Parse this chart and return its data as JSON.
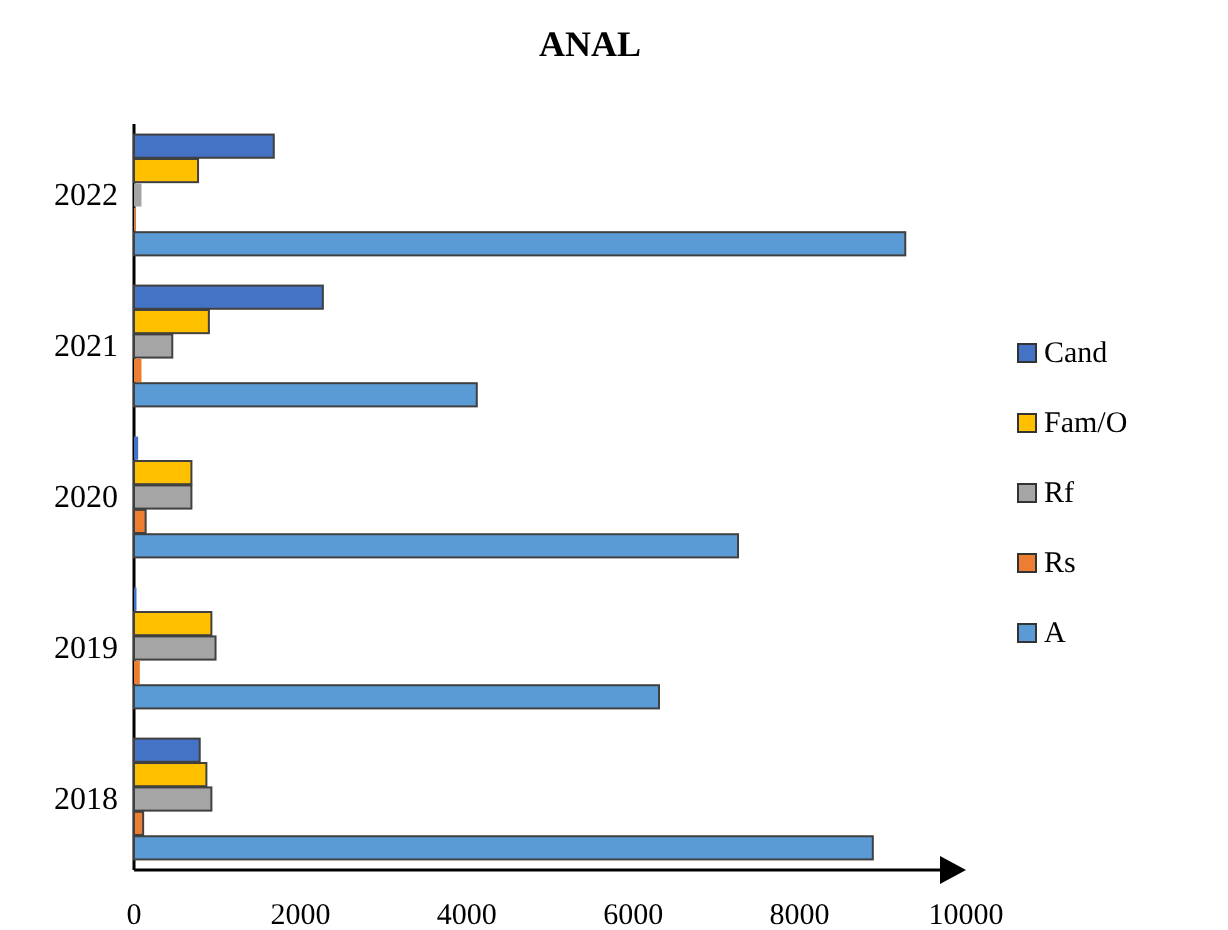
{
  "chart_data": {
    "type": "bar",
    "orientation": "horizontal",
    "title": "ANAL",
    "categories": [
      "2022",
      "2021",
      "2020",
      "2019",
      "2018"
    ],
    "series": [
      {
        "name": "Cand",
        "color": "#4472c4",
        "values": [
          1680,
          2270,
          50,
          30,
          790
        ]
      },
      {
        "name": "Fam/O",
        "color": "#ffc000",
        "values": [
          770,
          900,
          690,
          930,
          870
        ]
      },
      {
        "name": "Rf",
        "color": "#a5a5a5",
        "values": [
          90,
          460,
          690,
          980,
          930
        ]
      },
      {
        "name": "Rs",
        "color": "#ed7d31",
        "values": [
          20,
          90,
          140,
          70,
          110
        ]
      },
      {
        "name": "A",
        "color": "#5b9bd5",
        "values": [
          9270,
          4120,
          7260,
          6310,
          8880
        ]
      }
    ],
    "xlim": [
      0,
      10000
    ],
    "xticks": [
      0,
      2000,
      4000,
      6000,
      8000,
      10000
    ],
    "grid": false,
    "legend": "right"
  }
}
